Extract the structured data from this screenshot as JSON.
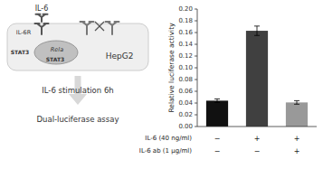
{
  "chart_data": {
    "type": "bar",
    "categories": [
      null,
      null,
      null
    ],
    "values": [
      0.044,
      0.163,
      0.041
    ],
    "errors": [
      0.003,
      0.008,
      0.003
    ],
    "colors": [
      "#111111",
      "#404040",
      "#999999"
    ],
    "ylabel": "Relative luciferase activity",
    "ylim": [
      0.0,
      0.2
    ],
    "yticks": [
      {
        "value": 0.0,
        "label": "0.00"
      },
      {
        "value": 0.02,
        "label": "0.02"
      },
      {
        "value": 0.04,
        "label": "0.04"
      },
      {
        "value": 0.06,
        "label": "0.06"
      },
      {
        "value": 0.08,
        "label": "0.08"
      },
      {
        "value": 0.1,
        "label": "0.10"
      },
      {
        "value": 0.12,
        "label": "0.12"
      },
      {
        "value": 0.14,
        "label": "0.14"
      },
      {
        "value": 0.16,
        "label": "0.16"
      },
      {
        "value": 0.18,
        "label": "0.18"
      },
      {
        "value": 0.2,
        "label": "0.20"
      }
    ],
    "conditions": [
      {
        "label": "IL-6 (40 ng/ml)",
        "signs": [
          "−",
          "+",
          "+"
        ]
      },
      {
        "label": "IL-6 ab (1 μg/ml)",
        "signs": [
          "−",
          "−",
          "+"
        ]
      }
    ],
    "annotations": [
      "IL-6",
      "IL-6R",
      "STAT3",
      "Rela",
      "STAT3",
      "HepG2",
      "IL-6 stimulation 6h",
      "Dual-luciferase assay"
    ],
    "grid": false
  }
}
